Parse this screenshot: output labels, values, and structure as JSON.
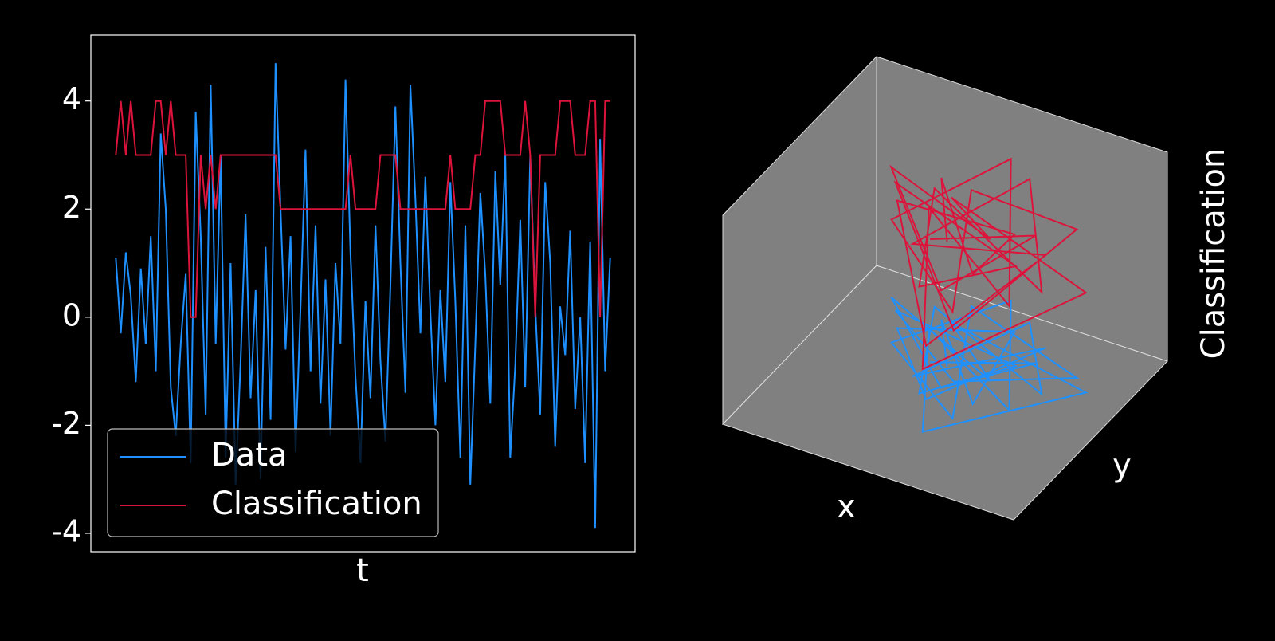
{
  "chart_data": [
    {
      "type": "line",
      "xlabel": "t",
      "xlim": [
        -5,
        104
      ],
      "ylim": [
        -4.34,
        5.22
      ],
      "yticks": [
        -4,
        -2,
        0,
        2,
        4
      ],
      "yticks_labels_note_free": true,
      "grid": false,
      "legend": "lower left",
      "series": [
        {
          "name": "Data",
          "color": "#1e90ff",
          "values": [
            1.1,
            -0.3,
            1.2,
            0.4,
            -1.2,
            0.9,
            -0.5,
            1.5,
            -1.0,
            3.4,
            2.0,
            -1.3,
            -2.2,
            -0.5,
            0.8,
            -2.7,
            3.8,
            1.5,
            -1.8,
            4.3,
            -0.5,
            3.0,
            -2.6,
            1.0,
            -3.1,
            -0.8,
            1.9,
            -1.5,
            0.5,
            -3.0,
            1.3,
            -1.9,
            4.7,
            2.0,
            -0.6,
            1.5,
            -2.5,
            0.2,
            3.1,
            -1.0,
            1.7,
            -1.6,
            0.7,
            -2.2,
            1.0,
            -0.5,
            4.4,
            1.2,
            -1.1,
            -2.7,
            0.3,
            -1.5,
            1.7,
            -0.8,
            -2.3,
            0.6,
            3.9,
            1.0,
            -1.4,
            4.3,
            2.2,
            -0.3,
            2.6,
            0.1,
            -2.0,
            0.5,
            -1.2,
            2.5,
            0.3,
            -2.6,
            1.7,
            -3.1,
            -0.5,
            2.3,
            0.8,
            -1.6,
            2.7,
            0.6,
            3.0,
            -2.6,
            -0.9,
            1.8,
            -1.3,
            3.0,
            0.2,
            -1.8,
            2.5,
            1.0,
            -2.4,
            0.2,
            -0.7,
            1.6,
            -1.7,
            0.0,
            -2.7,
            1.4,
            -3.9,
            3.3,
            -1.0,
            1.1
          ]
        },
        {
          "name": "Classification",
          "color": "#dc143c",
          "values": [
            3,
            4,
            3,
            4,
            3,
            3,
            3,
            3,
            4,
            4,
            3,
            4,
            3,
            3,
            3,
            0,
            0,
            3,
            2,
            3,
            2,
            3,
            3,
            3,
            3,
            3,
            3,
            3,
            3,
            3,
            3,
            3,
            3,
            2,
            2,
            2,
            2,
            2,
            2,
            2,
            2,
            2,
            2,
            2,
            2,
            2,
            2,
            3,
            2,
            2,
            2,
            2,
            2,
            3,
            3,
            3,
            3,
            2,
            2,
            2,
            2,
            2,
            2,
            2,
            2,
            2,
            2,
            3,
            2,
            2,
            2,
            2,
            3,
            3,
            4,
            4,
            4,
            4,
            3,
            3,
            3,
            3,
            4,
            3,
            0,
            3,
            3,
            3,
            3,
            4,
            4,
            4,
            3,
            3,
            3,
            4,
            4,
            0,
            4,
            4
          ]
        }
      ]
    },
    {
      "type": "line3d",
      "xlabel": "x",
      "ylabel": "y",
      "zlabel": "Classification",
      "xlim": [
        -3,
        3
      ],
      "ylim": [
        -3,
        3
      ],
      "zlim": [
        -4,
        5
      ],
      "x": [
        0.2,
        -0.5,
        1.1,
        0.8,
        -1.2,
        0.4,
        1.6,
        -0.3,
        0.9,
        2.1,
        -0.8,
        0.1,
        1.3,
        -1.5,
        0.6,
        2.4,
        -0.2,
        1.0,
        -1.0,
        0.3,
        1.8,
        -0.6,
        0.7,
        2.8,
        -0.4,
        1.2,
        -1.8,
        0.5,
        1.5,
        -0.1
      ],
      "y": [
        -0.3,
        0.8,
        -1.0,
        1.2,
        0.4,
        -1.5,
        0.9,
        -0.7,
        1.6,
        -0.2,
        1.1,
        -1.2,
        0.3,
        0.9,
        -0.8,
        0.6,
        1.4,
        -1.6,
        -0.2,
        2.0,
        -0.9,
        0.5,
        -2.2,
        0.2,
        1.0,
        -0.5,
        1.3,
        -1.1,
        0.7,
        -0.4
      ],
      "series": [
        {
          "name": "Data",
          "color": "#1e90ff",
          "z": [
            -2.4,
            -2.1,
            -2.6,
            -2.2,
            -2.5,
            -2.3,
            -2.0,
            -2.7,
            -2.2,
            -2.4,
            -2.1,
            -2.6,
            -2.3,
            -2.5,
            -2.2,
            -2.4,
            -2.0,
            -2.6,
            -2.3,
            -2.1,
            -2.5,
            -2.2,
            -2.7,
            -2.3,
            -2.4,
            -2.1,
            -2.6,
            -2.2,
            -2.5,
            -2.3
          ]
        },
        {
          "name": "Classification",
          "color": "#dc143c",
          "z": [
            3,
            4,
            3,
            2,
            3,
            0,
            2,
            3,
            4,
            2,
            3,
            2,
            2,
            3,
            0,
            4,
            3,
            2,
            3,
            4,
            2,
            3,
            0,
            2,
            3,
            4,
            3,
            2,
            3,
            3
          ]
        }
      ]
    }
  ]
}
